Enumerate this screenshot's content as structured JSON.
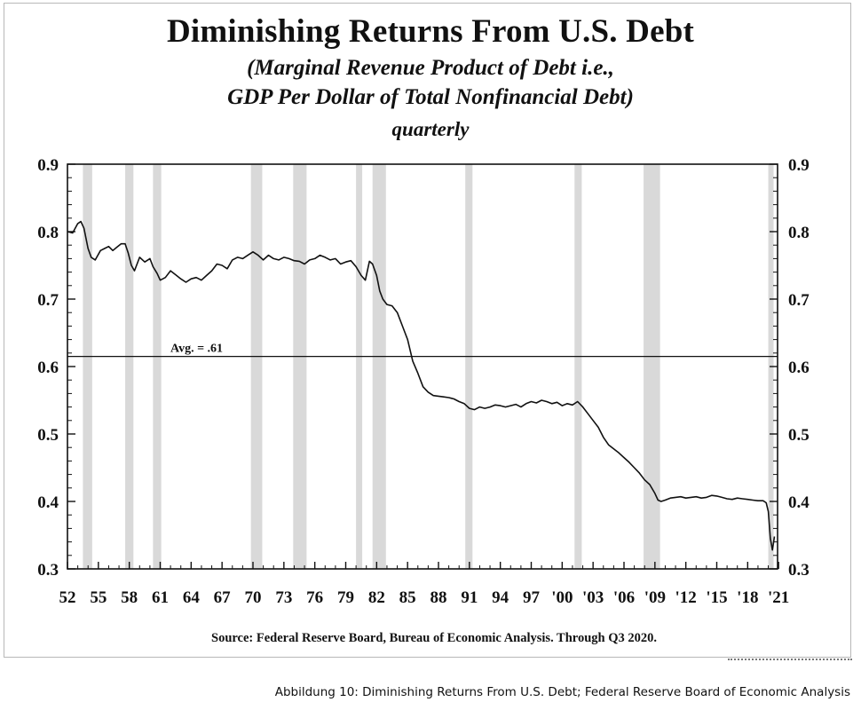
{
  "caption": "Abbildung 10: Diminishing Returns From U.S. Debt; Federal Reserve Board of Economic Analysis",
  "colors": {
    "line": "#111111",
    "recession_shading": "#d9d9d9",
    "axis": "#111111"
  },
  "chart_data": {
    "type": "line",
    "title": "Diminishing Returns From U.S. Debt",
    "subtitle_lines": [
      "(Marginal Revenue Product of Debt i.e.,",
      "GDP Per Dollar of Total Nonfinancial Debt)",
      "quarterly"
    ],
    "source": "Source:  Federal Reserve Board, Bureau of Economic Analysis.  Through Q3 2020.",
    "xlim": [
      1952,
      2020.9
    ],
    "ylim": [
      0.3,
      0.9
    ],
    "x_ticks": [
      1952,
      1955,
      1958,
      1961,
      1964,
      1967,
      1970,
      1973,
      1976,
      1979,
      1982,
      1985,
      1988,
      1991,
      1994,
      1997,
      2000,
      2003,
      2006,
      2009,
      2012,
      2015,
      2018,
      2021
    ],
    "x_tick_labels": [
      "52",
      "55",
      "58",
      "61",
      "64",
      "67",
      "70",
      "73",
      "76",
      "79",
      "82",
      "85",
      "88",
      "91",
      "94",
      "97",
      "'00",
      "'03",
      "'06",
      "'09",
      "'12",
      "'15",
      "'18",
      "'21"
    ],
    "y_ticks": [
      0.3,
      0.4,
      0.5,
      0.6,
      0.7,
      0.8,
      0.9
    ],
    "y_tick_labels": [
      "0.3",
      "0.4",
      "0.5",
      "0.6",
      "0.7",
      "0.8",
      "0.9"
    ],
    "reference_line": {
      "value": 0.615,
      "label": "Avg. = .61"
    },
    "recessions": [
      [
        1953.5,
        1954.4
      ],
      [
        1957.6,
        1958.4
      ],
      [
        1960.3,
        1961.1
      ],
      [
        1969.8,
        1970.9
      ],
      [
        1973.9,
        1975.2
      ],
      [
        1980.0,
        1980.6
      ],
      [
        1981.6,
        1982.9
      ],
      [
        1990.6,
        1991.3
      ],
      [
        2001.2,
        2001.9
      ],
      [
        2007.9,
        2009.5
      ],
      [
        2020.0,
        2020.5
      ]
    ],
    "series": [
      {
        "x": [
          1952.0,
          1952.5,
          1953.0,
          1953.3,
          1953.6,
          1954.0,
          1954.3,
          1954.7,
          1955.2,
          1955.6,
          1956.0,
          1956.4,
          1956.8,
          1957.2,
          1957.6,
          1957.9,
          1958.2,
          1958.5,
          1959.0,
          1959.5,
          1960.0,
          1960.3,
          1960.7,
          1961.0,
          1961.5,
          1962.0,
          1962.5,
          1963.0,
          1963.5,
          1964.0,
          1964.5,
          1965.0,
          1965.5,
          1966.0,
          1966.5,
          1967.0,
          1967.5,
          1968.0,
          1968.5,
          1969.0,
          1969.5,
          1970.0,
          1970.5,
          1971.0,
          1971.5,
          1972.0,
          1972.5,
          1973.0,
          1973.5,
          1974.0,
          1974.5,
          1975.0,
          1975.5,
          1976.0,
          1976.5,
          1977.0,
          1977.5,
          1978.0,
          1978.5,
          1979.0,
          1979.5,
          1980.0,
          1980.5,
          1980.9,
          1981.3,
          1981.6,
          1982.0,
          1982.3,
          1982.6,
          1983.0,
          1983.5,
          1984.0,
          1984.5,
          1985.0,
          1985.5,
          1986.0,
          1986.5,
          1987.0,
          1987.5,
          1988.0,
          1988.5,
          1989.0,
          1989.5,
          1990.0,
          1990.5,
          1991.0,
          1991.5,
          1992.0,
          1992.5,
          1993.0,
          1993.5,
          1994.0,
          1994.5,
          1995.0,
          1995.5,
          1996.0,
          1996.5,
          1997.0,
          1997.5,
          1998.0,
          1998.5,
          1999.0,
          1999.5,
          2000.0,
          2000.5,
          2001.0,
          2001.5,
          2002.0,
          2002.5,
          2003.0,
          2003.5,
          2004.0,
          2004.5,
          2005.0,
          2005.5,
          2006.0,
          2006.5,
          2007.0,
          2007.5,
          2008.0,
          2008.5,
          2009.0,
          2009.3,
          2009.6,
          2010.0,
          2010.5,
          2011.0,
          2011.5,
          2012.0,
          2012.5,
          2013.0,
          2013.5,
          2014.0,
          2014.5,
          2015.0,
          2015.5,
          2016.0,
          2016.5,
          2017.0,
          2017.5,
          2018.0,
          2018.5,
          2019.0,
          2019.5,
          2019.8,
          2020.0,
          2020.2,
          2020.4,
          2020.6
        ],
        "values": [
          0.8,
          0.798,
          0.812,
          0.815,
          0.805,
          0.775,
          0.762,
          0.758,
          0.772,
          0.775,
          0.778,
          0.772,
          0.777,
          0.782,
          0.782,
          0.768,
          0.75,
          0.742,
          0.762,
          0.755,
          0.76,
          0.748,
          0.738,
          0.728,
          0.732,
          0.742,
          0.736,
          0.73,
          0.725,
          0.73,
          0.732,
          0.728,
          0.735,
          0.742,
          0.752,
          0.75,
          0.745,
          0.758,
          0.762,
          0.76,
          0.765,
          0.77,
          0.765,
          0.758,
          0.765,
          0.76,
          0.758,
          0.762,
          0.76,
          0.757,
          0.756,
          0.752,
          0.758,
          0.76,
          0.765,
          0.762,
          0.758,
          0.76,
          0.752,
          0.755,
          0.757,
          0.748,
          0.735,
          0.728,
          0.756,
          0.752,
          0.735,
          0.712,
          0.7,
          0.692,
          0.69,
          0.68,
          0.66,
          0.64,
          0.608,
          0.59,
          0.57,
          0.562,
          0.557,
          0.556,
          0.555,
          0.554,
          0.552,
          0.548,
          0.545,
          0.538,
          0.536,
          0.54,
          0.538,
          0.54,
          0.543,
          0.542,
          0.54,
          0.542,
          0.544,
          0.54,
          0.545,
          0.548,
          0.546,
          0.55,
          0.548,
          0.545,
          0.547,
          0.542,
          0.545,
          0.543,
          0.548,
          0.54,
          0.53,
          0.52,
          0.51,
          0.495,
          0.484,
          0.478,
          0.472,
          0.465,
          0.458,
          0.45,
          0.442,
          0.432,
          0.425,
          0.412,
          0.402,
          0.4,
          0.402,
          0.405,
          0.406,
          0.407,
          0.405,
          0.406,
          0.407,
          0.405,
          0.406,
          0.409,
          0.408,
          0.406,
          0.404,
          0.403,
          0.405,
          0.404,
          0.403,
          0.402,
          0.401,
          0.401,
          0.398,
          0.385,
          0.345,
          0.328,
          0.348
        ]
      }
    ]
  }
}
